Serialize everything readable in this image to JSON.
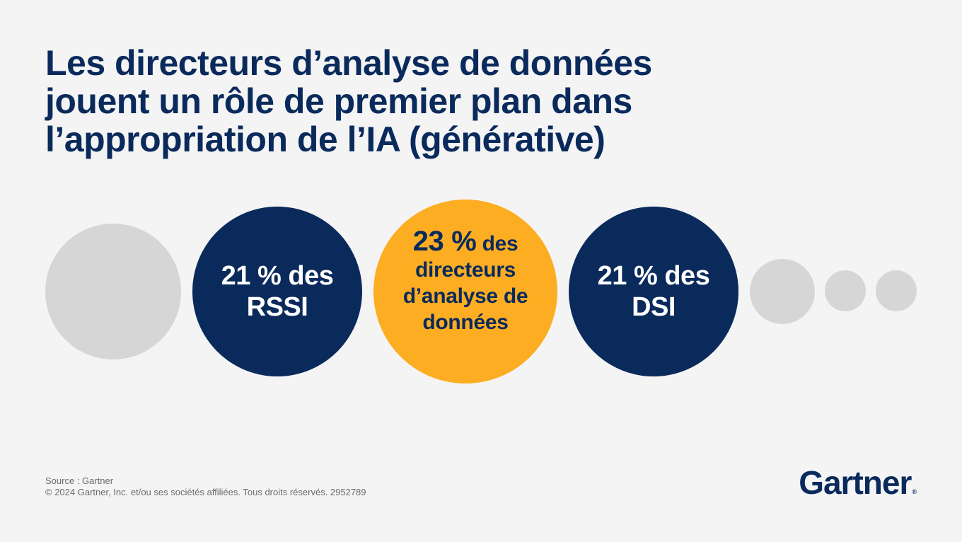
{
  "title_lines": [
    "Les directeurs d’analyse de données",
    "jouent un rôle de premier plan dans",
    "l’appropriation de l’IA (générative)"
  ],
  "chart_data": {
    "type": "bubble",
    "title": "Les directeurs d’analyse de données jouent un rôle de premier plan dans l’appropriation de l’IA (générative)",
    "unit": "%",
    "items": [
      {
        "value": 21,
        "value_label": "21 %",
        "text": "des",
        "group": "RSSI",
        "color": "#0a2a5c"
      },
      {
        "value": 23,
        "value_label": "23 %",
        "text": "des",
        "group_lines": [
          "directeurs",
          "d’analyse de",
          "données"
        ],
        "color": "#fdad22"
      },
      {
        "value": 21,
        "value_label": "21 %",
        "text": "des",
        "group": "DSI",
        "color": "#0a2a5c"
      }
    ],
    "decorative_color": "#d6d6d6"
  },
  "footer": {
    "source": "Source : Gartner",
    "copyright": "© 2024 Gartner, Inc. et/ou ses sociétés affiliées. Tous droits réservés. 2952789"
  },
  "logo": {
    "text": "Gartner",
    "mark": "®"
  }
}
